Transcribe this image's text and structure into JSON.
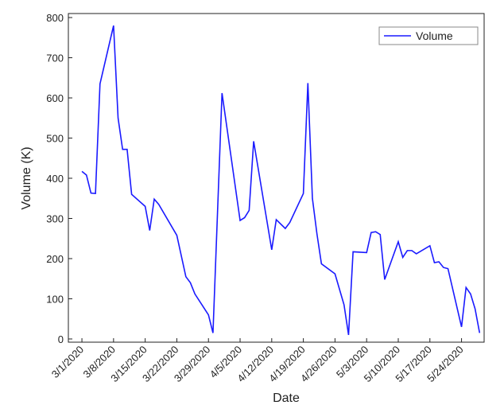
{
  "chart_data": {
    "type": "line",
    "x_label": "Date",
    "y_label": "Volume (K)",
    "x": [
      "3/1/2020",
      "3/2/2020",
      "3/3/2020",
      "3/4/2020",
      "3/5/2020",
      "3/8/2020",
      "3/9/2020",
      "3/10/2020",
      "3/11/2020",
      "3/12/2020",
      "3/15/2020",
      "3/16/2020",
      "3/17/2020",
      "3/18/2020",
      "3/22/2020",
      "3/24/2020",
      "3/25/2020",
      "3/26/2020",
      "3/29/2020",
      "3/30/2020",
      "4/1/2020",
      "4/5/2020",
      "4/6/2020",
      "4/7/2020",
      "4/8/2020",
      "4/12/2020",
      "4/13/2020",
      "4/15/2020",
      "4/16/2020",
      "4/19/2020",
      "4/20/2020",
      "4/21/2020",
      "4/22/2020",
      "4/23/2020",
      "4/26/2020",
      "4/28/2020",
      "4/29/2020",
      "4/30/2020",
      "5/3/2020",
      "5/4/2020",
      "5/5/2020",
      "5/6/2020",
      "5/7/2020",
      "5/10/2020",
      "5/11/2020",
      "5/12/2020",
      "5/13/2020",
      "5/14/2020",
      "5/17/2020",
      "5/18/2020",
      "5/19/2020",
      "5/20/2020",
      "5/21/2020",
      "5/24/2020",
      "5/25/2020",
      "5/26/2020",
      "5/27/2020",
      "5/28/2020"
    ],
    "series": [
      {
        "name": "Volume",
        "color": "#1a1aff",
        "values": [
          417,
          408,
          363,
          362,
          635,
          780,
          550,
          472,
          472,
          360,
          330,
          270,
          348,
          335,
          258,
          155,
          140,
          112,
          60,
          15,
          612,
          295,
          302,
          320,
          492,
          222,
          297,
          275,
          290,
          362,
          637,
          350,
          262,
          187,
          162,
          85,
          10,
          217,
          215,
          265,
          267,
          260,
          148,
          242,
          203,
          220,
          220,
          212,
          232,
          190,
          192,
          178,
          175,
          30,
          128,
          112,
          75,
          15
        ]
      }
    ],
    "xlim": [
      "2/27/2020",
      "5/29/2020"
    ],
    "xticks": [
      "3/1/2020",
      "3/8/2020",
      "3/15/2020",
      "3/22/2020",
      "3/29/2020",
      "4/5/2020",
      "4/12/2020",
      "4/19/2020",
      "4/26/2020",
      "5/3/2020",
      "5/10/2020",
      "5/17/2020",
      "5/24/2020"
    ],
    "ylim": [
      -8,
      810
    ],
    "yticks": [
      0,
      100,
      200,
      300,
      400,
      500,
      600,
      700,
      800
    ],
    "legend": "top-right"
  }
}
